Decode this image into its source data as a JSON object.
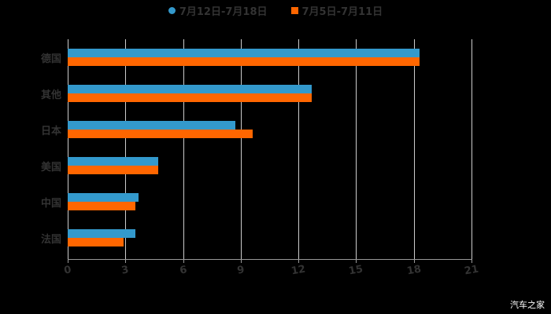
{
  "chart_data": {
    "type": "bar",
    "orientation": "horizontal",
    "title": "",
    "categories": [
      "德国",
      "其他",
      "日本",
      "美国",
      "中国",
      "法国"
    ],
    "series": [
      {
        "name": "7月12日-7月18日",
        "color": "#3399CC",
        "values": [
          18.3,
          12.7,
          8.7,
          4.7,
          3.7,
          3.5
        ]
      },
      {
        "name": "7月5日-7月11日",
        "color": "#FF6600",
        "values": [
          18.3,
          12.7,
          9.6,
          4.7,
          3.5,
          2.9
        ]
      }
    ],
    "xlabel": "",
    "ylabel": "",
    "xlim": [
      0,
      21
    ],
    "xticks": [
      "0",
      "3",
      "6",
      "9",
      "12",
      "15",
      "18",
      "21"
    ],
    "grid": true,
    "legend_position": "top"
  },
  "legend": [
    {
      "label": "7月12日-7月18日",
      "color": "#3399CC"
    },
    {
      "label": "7月5日-7月11日",
      "color": "#FF6600"
    }
  ],
  "watermark": "汽车之家"
}
